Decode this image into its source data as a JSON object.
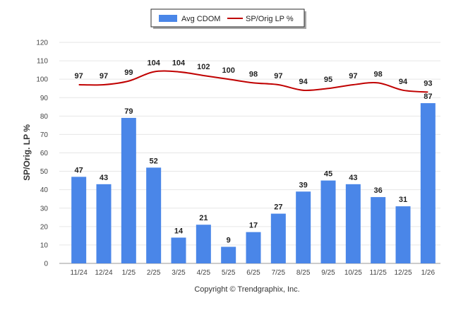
{
  "chart_data": {
    "type": "bar",
    "title": "",
    "xlabel": "",
    "ylabel": "SP/Orig. LP %",
    "ylim": [
      0,
      120
    ],
    "yticks": [
      0,
      10,
      20,
      30,
      40,
      50,
      60,
      70,
      80,
      90,
      100,
      110,
      120
    ],
    "grid": true,
    "legend_position": "top-center",
    "categories": [
      "11/24",
      "12/24",
      "1/25",
      "2/25",
      "3/25",
      "4/25",
      "5/25",
      "6/25",
      "7/25",
      "8/25",
      "9/25",
      "10/25",
      "11/25",
      "12/25",
      "1/26"
    ],
    "series": [
      {
        "name": "Avg CDOM",
        "kind": "bar",
        "color": "#4a86e8",
        "values": [
          47,
          43,
          79,
          52,
          14,
          21,
          9,
          17,
          27,
          39,
          45,
          43,
          36,
          31,
          87
        ]
      },
      {
        "name": "SP/Orig LP %",
        "kind": "line",
        "color": "#c00000",
        "values": [
          97,
          97,
          99,
          104,
          104,
          102,
          100,
          98,
          97,
          94,
          95,
          97,
          98,
          94,
          93
        ]
      }
    ],
    "footer": "Copyright © Trendgraphix, Inc."
  }
}
